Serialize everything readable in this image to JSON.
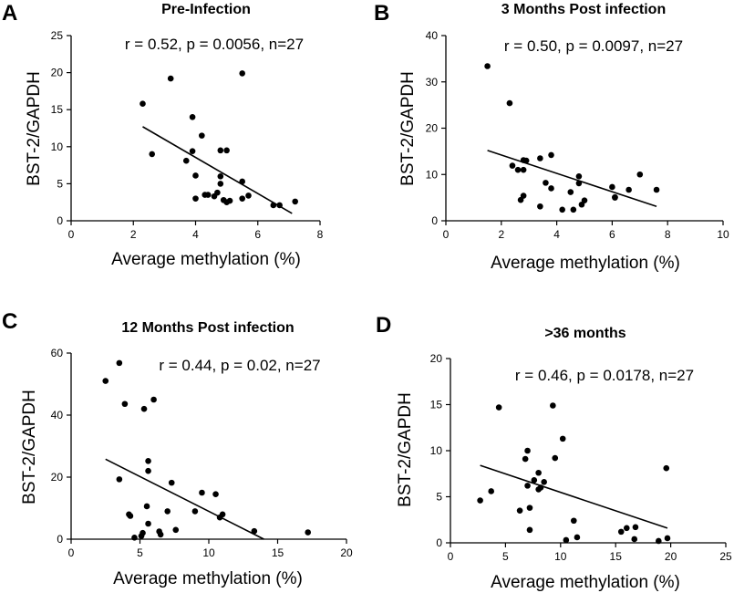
{
  "chart_data": [
    {
      "type": "scatter",
      "panel": "A",
      "title": "Pre-Infection",
      "annotation": "r = 0.52, p = 0.0056,  n=27",
      "xlabel": "Average methylation (%)",
      "ylabel": "BST-2/GAPDH",
      "xlim": [
        0,
        8
      ],
      "ylim": [
        0,
        25
      ],
      "xticks": [
        0,
        2,
        4,
        6,
        8
      ],
      "yticks": [
        0,
        5,
        10,
        15,
        20,
        25
      ],
      "points": [
        [
          2.3,
          15.8
        ],
        [
          3.2,
          19.2
        ],
        [
          5.5,
          19.9
        ],
        [
          2.6,
          9.0
        ],
        [
          3.9,
          14.0
        ],
        [
          4.2,
          11.5
        ],
        [
          3.9,
          9.4
        ],
        [
          4.8,
          9.5
        ],
        [
          5.0,
          9.5
        ],
        [
          3.7,
          8.1
        ],
        [
          4.8,
          6.0
        ],
        [
          4.0,
          6.1
        ],
        [
          5.5,
          5.3
        ],
        [
          4.4,
          3.5
        ],
        [
          4.6,
          3.3
        ],
        [
          4.7,
          3.8
        ],
        [
          4.8,
          5.0
        ],
        [
          4.0,
          3.0
        ],
        [
          4.9,
          2.8
        ],
        [
          5.0,
          2.5
        ],
        [
          5.1,
          2.7
        ],
        [
          5.5,
          3.0
        ],
        [
          5.7,
          3.4
        ],
        [
          6.5,
          2.1
        ],
        [
          6.7,
          2.1
        ],
        [
          7.2,
          2.6
        ],
        [
          4.3,
          3.5
        ]
      ],
      "fit": {
        "x": [
          2.3,
          7.1
        ],
        "y": [
          12.7,
          1.0
        ]
      }
    },
    {
      "type": "scatter",
      "panel": "B",
      "title": "3 Months Post infection",
      "annotation": "r = 0.50, p = 0.0097,   n=27",
      "xlabel": "Average methylation (%)",
      "ylabel": "BST-2/GAPDH",
      "xlim": [
        0,
        10
      ],
      "ylim": [
        0,
        40
      ],
      "xticks": [
        0,
        2,
        4,
        6,
        8,
        10
      ],
      "yticks": [
        0,
        10,
        20,
        30,
        40
      ],
      "points": [
        [
          1.5,
          33.4
        ],
        [
          2.3,
          25.4
        ],
        [
          2.4,
          11.9
        ],
        [
          2.6,
          11.0
        ],
        [
          2.8,
          11.0
        ],
        [
          2.8,
          13.1
        ],
        [
          2.9,
          13.0
        ],
        [
          3.4,
          13.5
        ],
        [
          3.8,
          14.2
        ],
        [
          2.8,
          5.4
        ],
        [
          2.7,
          4.5
        ],
        [
          3.6,
          8.2
        ],
        [
          3.8,
          7.0
        ],
        [
          4.5,
          6.2
        ],
        [
          4.8,
          9.6
        ],
        [
          4.8,
          8.1
        ],
        [
          5.0,
          4.4
        ],
        [
          4.9,
          3.5
        ],
        [
          4.6,
          2.4
        ],
        [
          4.2,
          2.4
        ],
        [
          3.4,
          3.1
        ],
        [
          6.0,
          7.3
        ],
        [
          6.1,
          5.0
        ],
        [
          6.6,
          6.7
        ],
        [
          7.0,
          10.0
        ],
        [
          7.6,
          6.7
        ],
        [
          6.1,
          5.1
        ]
      ],
      "fit": {
        "x": [
          1.5,
          7.6
        ],
        "y": [
          15.2,
          3.1
        ]
      }
    },
    {
      "type": "scatter",
      "panel": "C",
      "title": "12 Months Post infection",
      "annotation": "r = 0.44, p = 0.02,  n=27",
      "xlabel": "Average methylation (%)",
      "ylabel": "BST-2/GAPDH",
      "xlim": [
        0,
        20
      ],
      "ylim": [
        0,
        60
      ],
      "xticks": [
        0,
        5,
        10,
        15,
        20
      ],
      "yticks": [
        0,
        20,
        40,
        60
      ],
      "points": [
        [
          2.5,
          51.0
        ],
        [
          3.5,
          56.8
        ],
        [
          3.9,
          43.6
        ],
        [
          5.3,
          42.0
        ],
        [
          6.0,
          45.0
        ],
        [
          3.5,
          19.3
        ],
        [
          5.6,
          25.2
        ],
        [
          5.6,
          22.0
        ],
        [
          7.3,
          18.2
        ],
        [
          9.5,
          15.0
        ],
        [
          10.5,
          14.5
        ],
        [
          4.2,
          8.0
        ],
        [
          4.3,
          7.5
        ],
        [
          5.5,
          10.6
        ],
        [
          7.0,
          9.0
        ],
        [
          10.8,
          7.0
        ],
        [
          11.0,
          8.0
        ],
        [
          5.6,
          5.0
        ],
        [
          6.4,
          2.5
        ],
        [
          6.5,
          1.5
        ],
        [
          7.6,
          3.0
        ],
        [
          5.1,
          1.0
        ],
        [
          5.2,
          2.0
        ],
        [
          4.6,
          0.5
        ],
        [
          13.3,
          2.6
        ],
        [
          17.2,
          2.2
        ],
        [
          9.0,
          9.0
        ]
      ],
      "fit": {
        "x": [
          2.5,
          14.0
        ],
        "y": [
          25.8,
          0.0
        ]
      }
    },
    {
      "type": "scatter",
      "panel": "D",
      "title": ">36 months",
      "annotation": "r = 0.46, p = 0.0178, n=27",
      "xlabel": "Average methylation (%)",
      "ylabel": "BST-2/GAPDH",
      "xlim": [
        0,
        25
      ],
      "ylim": [
        0,
        20
      ],
      "xticks": [
        0,
        5,
        10,
        15,
        20,
        25
      ],
      "yticks": [
        0,
        5,
        10,
        15,
        20
      ],
      "points": [
        [
          4.4,
          14.7
        ],
        [
          9.3,
          14.9
        ],
        [
          7.0,
          10.0
        ],
        [
          6.8,
          9.1
        ],
        [
          9.5,
          9.2
        ],
        [
          10.2,
          11.3
        ],
        [
          8.0,
          7.6
        ],
        [
          7.6,
          6.8
        ],
        [
          8.2,
          6.0
        ],
        [
          8.5,
          6.6
        ],
        [
          7.0,
          6.2
        ],
        [
          3.7,
          5.6
        ],
        [
          2.7,
          4.6
        ],
        [
          6.3,
          3.5
        ],
        [
          7.2,
          3.8
        ],
        [
          11.2,
          2.4
        ],
        [
          7.2,
          1.4
        ],
        [
          11.5,
          0.6
        ],
        [
          10.5,
          0.3
        ],
        [
          15.5,
          1.2
        ],
        [
          16.0,
          1.6
        ],
        [
          16.8,
          1.7
        ],
        [
          16.7,
          0.4
        ],
        [
          18.9,
          0.2
        ],
        [
          19.6,
          8.1
        ],
        [
          19.7,
          0.5
        ],
        [
          8.0,
          5.8
        ]
      ],
      "fit": {
        "x": [
          2.7,
          19.7
        ],
        "y": [
          8.4,
          1.6
        ]
      }
    }
  ]
}
